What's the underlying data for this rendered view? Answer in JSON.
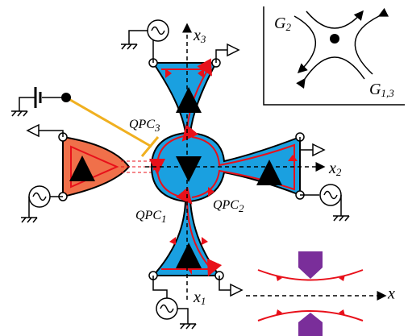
{
  "labels": [
    {
      "main": "G",
      "sub": "2"
    },
    {
      "main": "G",
      "sub": "1,3"
    },
    {
      "main": "x",
      "sub": "3"
    },
    {
      "main": "x",
      "sub": "2"
    },
    {
      "main": "x",
      "sub": "1"
    },
    {
      "main": "QPC",
      "sub": "3"
    },
    {
      "main": "QPC",
      "sub": "1"
    },
    {
      "main": "QPC",
      "sub": "2"
    },
    {
      "main": "x"
    }
  ]
}
